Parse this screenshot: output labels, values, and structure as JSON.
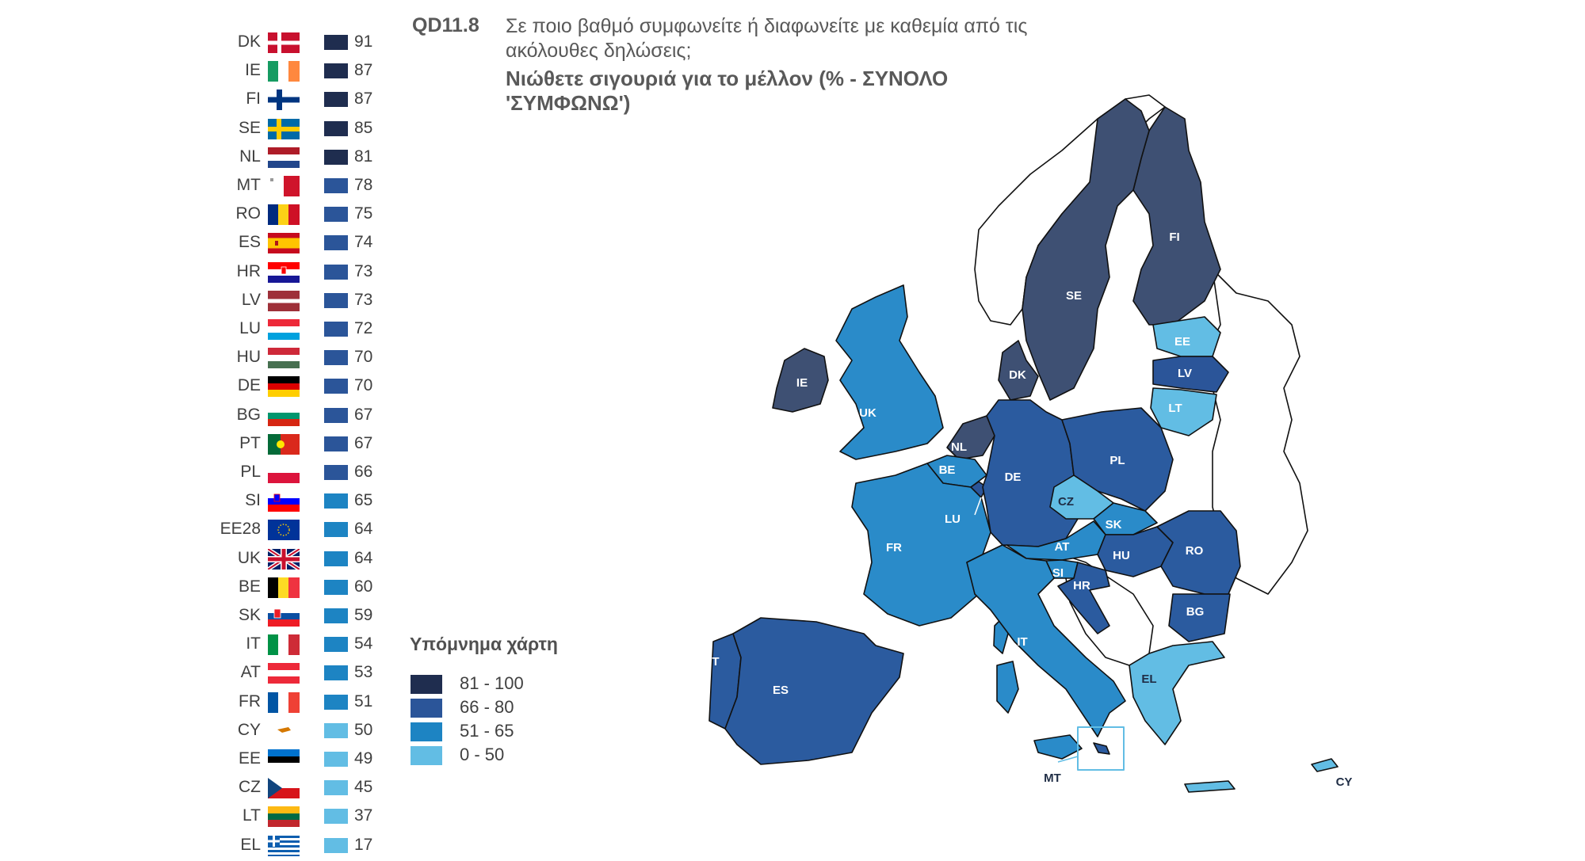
{
  "header": {
    "question_code": "QD11.8",
    "question_text": "Σε ποιο βαθμό συμφωνείτε ή διαφωνείτε με καθεμία από τις ακόλουθες δηλώσεις;",
    "subtitle": "Νιώθετε σιγουριά για το μέλλον  (% - ΣΥΝΟΛΟ 'ΣΥΜΦΩΝΩ')"
  },
  "legend": {
    "title": "Υπόμνημα χάρτη",
    "ranges": [
      {
        "label": "81 - 100",
        "color": "#1f2d4f"
      },
      {
        "label": "66 - 80",
        "color": "#2b5599"
      },
      {
        "label": "51 - 65",
        "color": "#1d84c3"
      },
      {
        "label": "0 - 50",
        "color": "#62bde4"
      }
    ]
  },
  "countries": [
    {
      "code": "DK",
      "value": "91",
      "flag": "denmark"
    },
    {
      "code": "IE",
      "value": "87",
      "flag": "ireland"
    },
    {
      "code": "FI",
      "value": "87",
      "flag": "finland"
    },
    {
      "code": "SE",
      "value": "85",
      "flag": "sweden"
    },
    {
      "code": "NL",
      "value": "81",
      "flag": "netherlands"
    },
    {
      "code": "MT",
      "value": "78",
      "flag": "malta"
    },
    {
      "code": "RO",
      "value": "75",
      "flag": "romania"
    },
    {
      "code": "ES",
      "value": "74",
      "flag": "spain"
    },
    {
      "code": "HR",
      "value": "73",
      "flag": "croatia"
    },
    {
      "code": "LV",
      "value": "73",
      "flag": "latvia"
    },
    {
      "code": "LU",
      "value": "72",
      "flag": "luxembourg"
    },
    {
      "code": "HU",
      "value": "70",
      "flag": "hungary"
    },
    {
      "code": "DE",
      "value": "70",
      "flag": "germany"
    },
    {
      "code": "BG",
      "value": "67",
      "flag": "bulgaria"
    },
    {
      "code": "PT",
      "value": "67",
      "flag": "portugal"
    },
    {
      "code": "PL",
      "value": "66",
      "flag": "poland"
    },
    {
      "code": "SI",
      "value": "65",
      "flag": "slovenia"
    },
    {
      "code": "EE28",
      "value": "64",
      "flag": "eu"
    },
    {
      "code": "UK",
      "value": "64",
      "flag": "uk"
    },
    {
      "code": "BE",
      "value": "60",
      "flag": "belgium"
    },
    {
      "code": "SK",
      "value": "59",
      "flag": "slovakia"
    },
    {
      "code": "IT",
      "value": "54",
      "flag": "italy"
    },
    {
      "code": "AT",
      "value": "53",
      "flag": "austria"
    },
    {
      "code": "FR",
      "value": "51",
      "flag": "france"
    },
    {
      "code": "CY",
      "value": "50",
      "flag": "cyprus"
    },
    {
      "code": "EE",
      "value": "49",
      "flag": "estonia"
    },
    {
      "code": "CZ",
      "value": "45",
      "flag": "czechia"
    },
    {
      "code": "LT",
      "value": "37",
      "flag": "lithuania"
    },
    {
      "code": "EL",
      "value": "17",
      "flag": "greece"
    }
  ],
  "map_labels": [
    "FI",
    "SE",
    "EE",
    "LV",
    "LT",
    "DK",
    "IE",
    "UK",
    "NL",
    "BE",
    "LU",
    "DE",
    "PL",
    "CZ",
    "SK",
    "AT",
    "HU",
    "SI",
    "HR",
    "RO",
    "BG",
    "FR",
    "IT",
    "PT",
    "ES",
    "EL",
    "MT",
    "CY"
  ]
}
